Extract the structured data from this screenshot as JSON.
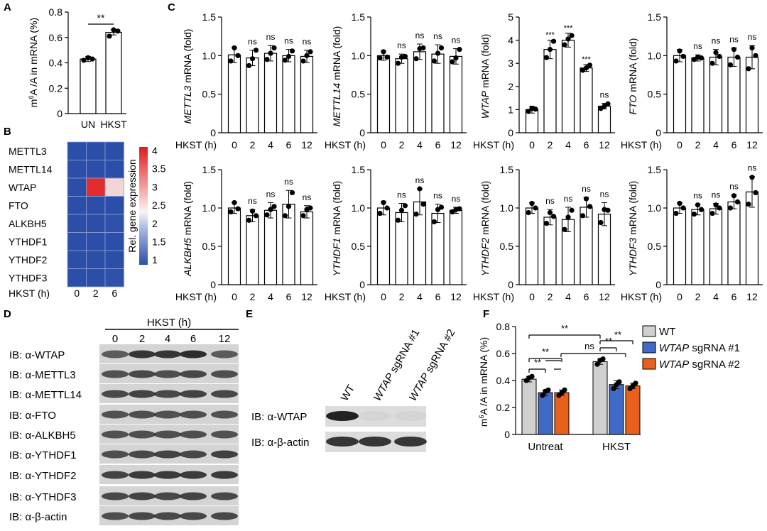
{
  "figure": {
    "panel_labels": {
      "A": "A",
      "B": "B",
      "C": "C",
      "D": "D",
      "E": "E",
      "F": "F"
    },
    "hkst_axis_label": "HKST (h)",
    "x_ticks": [
      "0",
      "2",
      "4",
      "6",
      "12"
    ],
    "ns": "ns",
    "c_y_ticks": [
      "0",
      "0.5",
      "1.0",
      "1.5"
    ],
    "wtap_y_ticks": [
      "0",
      "1",
      "2",
      "3",
      "4",
      "5"
    ]
  },
  "panel_a": {
    "ylabel_pre": "m",
    "ylabel_sup": "6",
    "ylabel_post": "A /A in mRNA  (%)",
    "y_ticks": [
      "0",
      "0.2",
      "0.4",
      "0.6",
      "0.8"
    ],
    "significance": "**"
  },
  "panel_b": {
    "genes": [
      "METTL3",
      "METTL14",
      "WTAP",
      "FTO",
      "ALKBH5",
      "YTHDF1",
      "YTHDF2",
      "YTHDF3"
    ],
    "x_label": "HKST (h)",
    "columns": [
      "0",
      "2",
      "6"
    ],
    "colorbar_label": "Rel. gene expression",
    "colorbar_ticks": [
      "4",
      "3.5",
      "3",
      "2.5",
      "2",
      "1.5",
      "1"
    ],
    "colors": {
      "low": "#2b4fa8",
      "mid": "#f5f5f5",
      "high": "#e31a1c"
    }
  },
  "panel_d": {
    "header": "HKST (h)",
    "lanes": [
      "0",
      "2",
      "4",
      "6",
      "12"
    ],
    "blots": [
      "IB: α-WTAP",
      "IB: α-METTL3",
      "IB: α-METTL14",
      "IB: α-FTO",
      "IB: α-ALKBH5",
      "IB: α-YTHDF1",
      "IB: α-YTHDF2",
      "IB: α-YTHDF3",
      "IB: α-β-actin"
    ]
  },
  "panel_e": {
    "lanes": [
      {
        "name": "WT",
        "suffix": ""
      },
      {
        "name": "WTAP",
        "suffix": " sgRNA #1"
      },
      {
        "name": "WTAP",
        "suffix": " sgRNA #2"
      }
    ],
    "blots": [
      "IB: α-WTAP",
      "IB: α-β-actin"
    ]
  },
  "panel_f": {
    "y_ticks": [
      "0",
      "0.2",
      "0.4",
      "0.6",
      "0.8"
    ],
    "legend": [
      {
        "name": "WT",
        "suffix": "",
        "color": "#d0d0d0"
      },
      {
        "name": "WTAP",
        "suffix": " sgRNA #1",
        "color": "#3f6bc7"
      },
      {
        "name": "WTAP",
        "suffix": " sgRNA #2",
        "color": "#e8601c"
      }
    ],
    "sig": [
      "**",
      "**",
      "**",
      "ns",
      "**",
      "**"
    ]
  },
  "chart_data": [
    {
      "type": "bar",
      "panel": "A",
      "categories": [
        "UN",
        "HKST"
      ],
      "values": [
        0.43,
        0.64
      ],
      "points": [
        [
          0.42,
          0.44,
          0.43
        ],
        [
          0.61,
          0.66,
          0.65
        ]
      ],
      "ylabel": "m6A /A in mRNA (%)",
      "ylim": [
        0,
        0.8
      ],
      "annotation": "**"
    },
    {
      "type": "heatmap",
      "panel": "B",
      "rows": [
        "METTL3",
        "METTL14",
        "WTAP",
        "FTO",
        "ALKBH5",
        "YTHDF1",
        "YTHDF2",
        "YTHDF3"
      ],
      "columns": [
        "0",
        "2",
        "6"
      ],
      "values": [
        [
          1.0,
          0.97,
          1.0
        ],
        [
          1.0,
          0.97,
          1.0
        ],
        [
          1.0,
          3.9,
          2.8
        ],
        [
          1.0,
          0.98,
          0.98
        ],
        [
          1.0,
          0.9,
          1.05
        ],
        [
          1.0,
          0.95,
          0.93
        ],
        [
          1.0,
          0.88,
          1.0
        ],
        [
          1.0,
          0.98,
          1.05
        ]
      ],
      "xlabel": "HKST (h)",
      "colorbar_label": "Rel. gene expression",
      "colorbar_range": [
        1,
        4
      ]
    },
    {
      "type": "bar",
      "panel": "C",
      "x": [
        "0",
        "2",
        "4",
        "6",
        "12"
      ],
      "xlabel": "HKST (h)",
      "series": [
        {
          "name": "METTL3",
          "ylabel_gene": "METTL3",
          "values": [
            1.01,
            0.97,
            1.03,
            1.0,
            0.99
          ],
          "errors": [
            0.1,
            0.1,
            0.1,
            0.08,
            0.08
          ],
          "points": [
            [
              0.93,
              1.1,
              1.0
            ],
            [
              0.87,
              0.96,
              1.07
            ],
            [
              0.95,
              1.03,
              1.1
            ],
            [
              0.94,
              0.99,
              1.06
            ],
            [
              0.93,
              1.0,
              1.05
            ]
          ],
          "sig": [
            "",
            "ns",
            "ns",
            "ns",
            "ns"
          ],
          "ylim": [
            0,
            1.5
          ]
        },
        {
          "name": "METTL14",
          "ylabel_gene": "METTL14",
          "values": [
            1.0,
            0.96,
            1.05,
            1.02,
            0.99
          ],
          "errors": [
            0.06,
            0.06,
            0.1,
            0.12,
            0.1
          ],
          "points": [
            [
              0.97,
              1.05,
              0.98
            ],
            [
              0.9,
              0.98,
              0.99
            ],
            [
              0.96,
              1.09,
              1.1
            ],
            [
              0.93,
              1.03,
              1.1
            ],
            [
              0.92,
              0.97,
              1.08
            ]
          ],
          "sig": [
            "",
            "ns",
            "ns",
            "ns",
            "ns"
          ],
          "ylim": [
            0,
            1.5
          ]
        },
        {
          "name": "WTAP",
          "ylabel_gene": "WTAP",
          "values": [
            1.0,
            3.6,
            4.0,
            2.8,
            1.15
          ],
          "errors": [
            0.15,
            0.4,
            0.3,
            0.15,
            0.12
          ],
          "points": [
            [
              0.92,
              1.05,
              1.02
            ],
            [
              3.25,
              3.6,
              3.95
            ],
            [
              3.8,
              4.05,
              4.2
            ],
            [
              2.7,
              2.8,
              2.92
            ],
            [
              1.05,
              1.15,
              1.25
            ]
          ],
          "sig": [
            "",
            "***",
            "***",
            "***",
            "ns"
          ],
          "ylim": [
            0,
            5
          ]
        },
        {
          "name": "FTO",
          "ylabel_gene": "FTO",
          "values": [
            1.0,
            0.97,
            0.98,
            0.98,
            0.98
          ],
          "errors": [
            0.08,
            0.04,
            0.1,
            0.12,
            0.15
          ],
          "points": [
            [
              0.93,
              1.06,
              0.99
            ],
            [
              0.95,
              0.98,
              0.97
            ],
            [
              0.9,
              1.04,
              0.99
            ],
            [
              0.88,
              1.08,
              0.98
            ],
            [
              0.83,
              1.1,
              1.0
            ]
          ],
          "sig": [
            "",
            "ns",
            "ns",
            "ns",
            "ns"
          ],
          "ylim": [
            0,
            1.5
          ]
        },
        {
          "name": "ALKBH5",
          "ylabel_gene": "ALKBH5",
          "values": [
            1.0,
            0.9,
            0.97,
            1.05,
            0.95
          ],
          "errors": [
            0.07,
            0.08,
            0.1,
            0.18,
            0.08
          ],
          "points": [
            [
              0.95,
              1.07,
              0.99
            ],
            [
              0.84,
              0.96,
              0.9
            ],
            [
              0.91,
              0.98,
              1.02
            ],
            [
              0.9,
              1.02,
              1.2
            ],
            [
              0.9,
              0.98,
              1.0
            ]
          ],
          "sig": [
            "",
            "ns",
            "ns",
            "ns",
            "ns"
          ],
          "ylim": [
            0,
            1.5
          ]
        },
        {
          "name": "YTHDF1",
          "ylabel_gene": "YTHDF1",
          "values": [
            1.0,
            0.94,
            1.08,
            0.93,
            0.97
          ],
          "errors": [
            0.09,
            0.12,
            0.17,
            0.12,
            0.04
          ],
          "points": [
            [
              0.93,
              1.07,
              1.0
            ],
            [
              0.84,
              0.97,
              1.03
            ],
            [
              0.92,
              1.25,
              1.05
            ],
            [
              0.82,
              0.98,
              1.01
            ],
            [
              0.95,
              0.98,
              0.99
            ]
          ],
          "sig": [
            "",
            "ns",
            "ns",
            "ns",
            "ns"
          ],
          "ylim": [
            0,
            1.5
          ]
        },
        {
          "name": "YTHDF2",
          "ylabel_gene": "YTHDF2",
          "values": [
            1.0,
            0.88,
            0.85,
            1.01,
            0.92
          ],
          "errors": [
            0.07,
            0.1,
            0.16,
            0.13,
            0.15
          ],
          "points": [
            [
              0.94,
              1.06,
              1.0
            ],
            [
              0.8,
              0.94,
              0.89
            ],
            [
              0.72,
              0.88,
              0.97
            ],
            [
              0.9,
              1.12,
              1.02
            ],
            [
              0.81,
              0.98,
              0.97
            ]
          ],
          "sig": [
            "",
            "ns",
            "ns",
            "ns",
            "ns"
          ],
          "ylim": [
            0,
            1.5
          ]
        },
        {
          "name": "YTHDF3",
          "ylabel_gene": "YTHDF3",
          "values": [
            1.0,
            0.98,
            0.99,
            1.08,
            1.21
          ],
          "errors": [
            0.07,
            0.07,
            0.07,
            0.09,
            0.2
          ],
          "points": [
            [
              0.93,
              1.06,
              1.0
            ],
            [
              0.92,
              1.04,
              0.98
            ],
            [
              0.93,
              1.04,
              1.0
            ],
            [
              1.0,
              1.16,
              1.08
            ],
            [
              1.05,
              1.4,
              1.2
            ]
          ],
          "sig": [
            "",
            "ns",
            "ns",
            "ns",
            "ns"
          ],
          "ylim": [
            0,
            1.5
          ]
        }
      ]
    },
    {
      "type": "bar",
      "panel": "F",
      "categories": [
        "Untreat",
        "HKST"
      ],
      "series": [
        {
          "name": "WT",
          "values": [
            0.41,
            0.54
          ],
          "errors": [
            0.02,
            0.02
          ],
          "points": [
            [
              0.4,
              0.42,
              0.43
            ],
            [
              0.52,
              0.55,
              0.56
            ]
          ]
        },
        {
          "name": "WTAP sgRNA #1",
          "values": [
            0.31,
            0.37
          ],
          "errors": [
            0.02,
            0.03
          ],
          "points": [
            [
              0.29,
              0.32,
              0.33
            ],
            [
              0.34,
              0.37,
              0.39
            ]
          ]
        },
        {
          "name": "WTAP sgRNA #2",
          "values": [
            0.31,
            0.36
          ],
          "errors": [
            0.02,
            0.02
          ],
          "points": [
            [
              0.29,
              0.31,
              0.33
            ],
            [
              0.34,
              0.36,
              0.38
            ]
          ]
        }
      ],
      "ylabel": "m6A /A in mRNA (%)",
      "ylim": [
        0,
        0.8
      ]
    }
  ]
}
